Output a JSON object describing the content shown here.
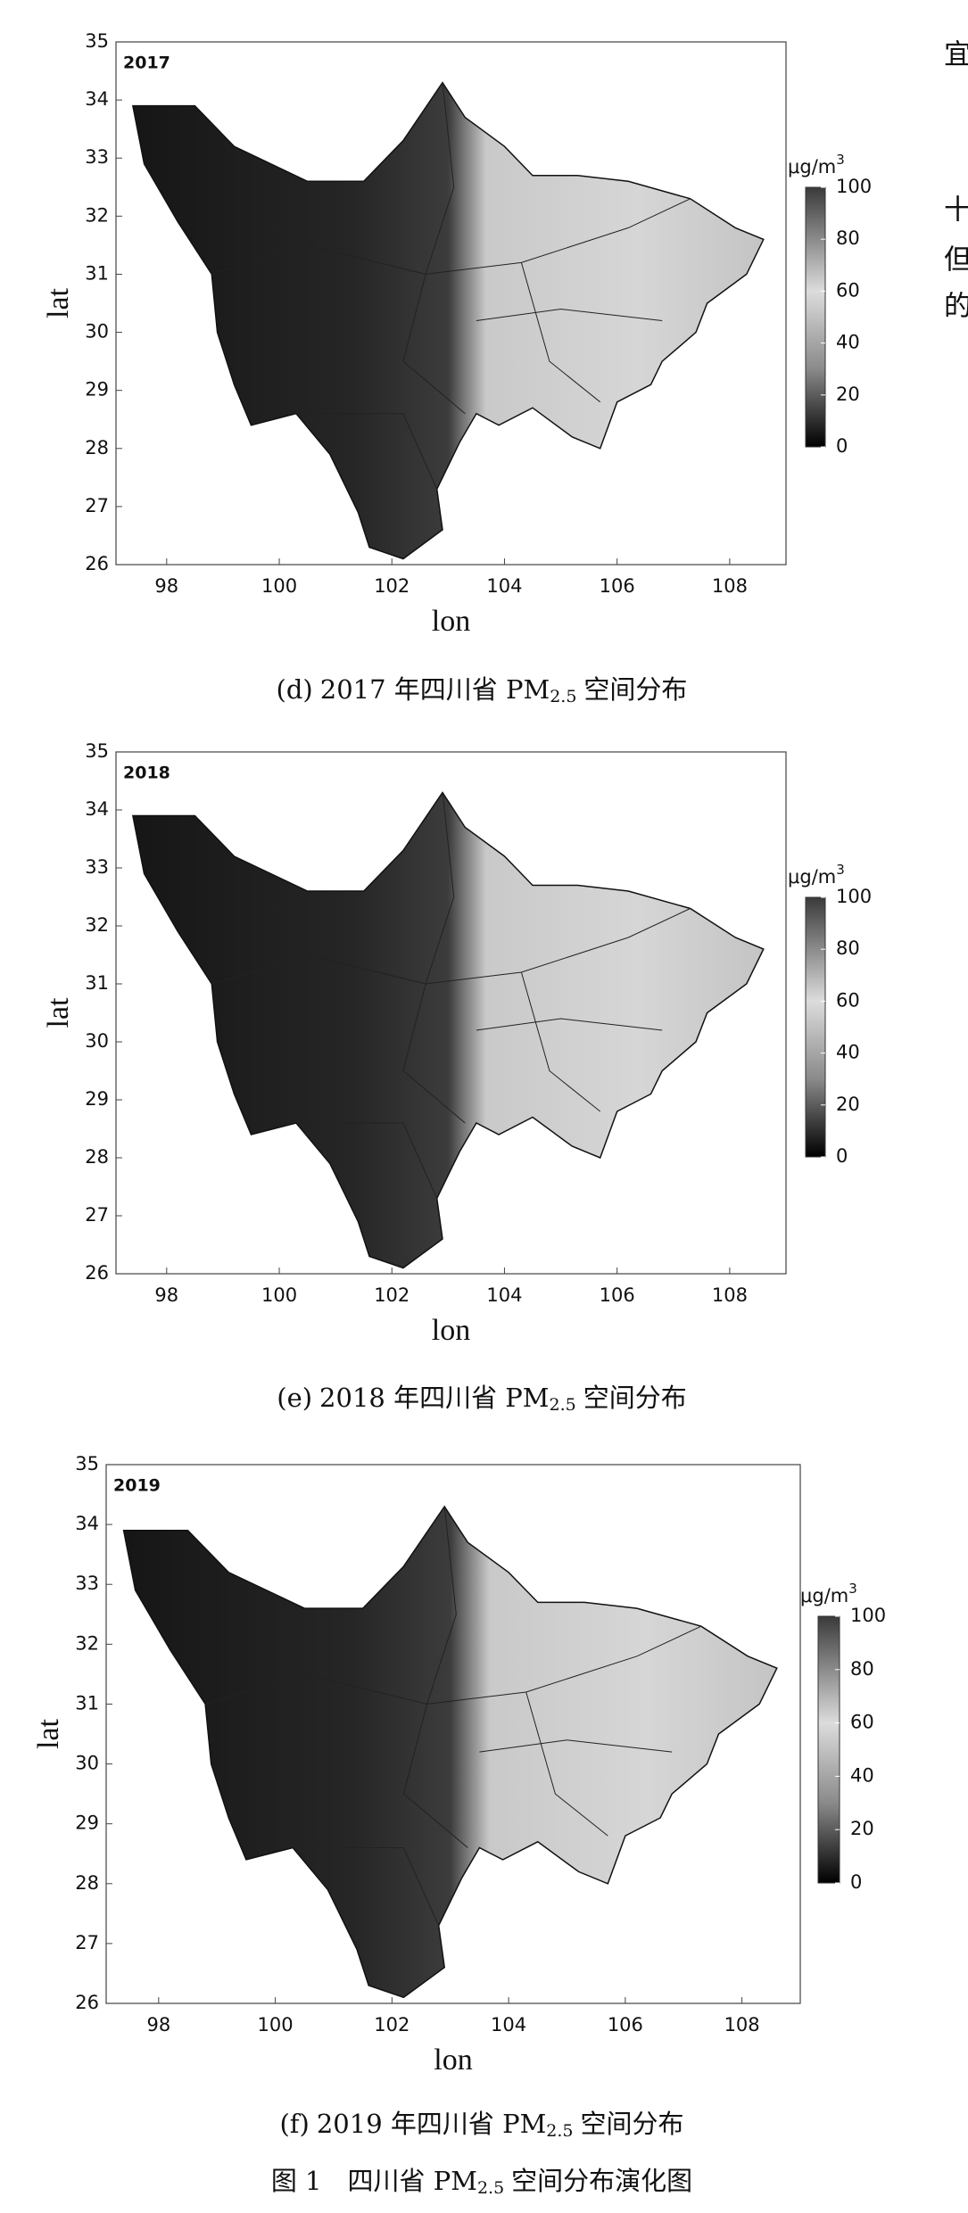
{
  "right_margin_text": [
    "宜",
    "十",
    "但",
    "的"
  ],
  "panels": [
    {
      "year": "2017",
      "xlabel": "lon",
      "ylabel": "lat",
      "xlim": [
        97.1,
        109
      ],
      "xticks": [
        98,
        100,
        102,
        104,
        106,
        108
      ],
      "ylim": [
        26,
        35
      ],
      "yticks": [
        26,
        27,
        28,
        29,
        30,
        31,
        32,
        33,
        34,
        35
      ],
      "colorbar": {
        "unit": "μg/m",
        "unit_sup": "3",
        "lim": [
          0,
          100
        ],
        "ticks": [
          0,
          20,
          40,
          60,
          80,
          100
        ]
      },
      "caption": {
        "label": "(d)",
        "text": "2017 年四川省 PM",
        "sub": "2.5",
        "tail": "空间分布"
      }
    },
    {
      "year": "2018",
      "xlabel": "lon",
      "ylabel": "lat",
      "xlim": [
        97.1,
        109
      ],
      "xticks": [
        98,
        100,
        102,
        104,
        106,
        108
      ],
      "ylim": [
        26,
        35
      ],
      "yticks": [
        26,
        27,
        28,
        29,
        30,
        31,
        32,
        33,
        34,
        35
      ],
      "colorbar": {
        "unit": "μg/m",
        "unit_sup": "3",
        "lim": [
          0,
          100
        ],
        "ticks": [
          0,
          20,
          40,
          60,
          80,
          100
        ]
      },
      "caption": {
        "label": "(e)",
        "text": "2018 年四川省 PM",
        "sub": "2.5",
        "tail": "空间分布"
      }
    },
    {
      "year": "2019",
      "xlabel": "lon",
      "ylabel": "lat",
      "xlim": [
        97.1,
        109
      ],
      "xticks": [
        98,
        100,
        102,
        104,
        106,
        108
      ],
      "ylim": [
        26,
        35
      ],
      "yticks": [
        26,
        27,
        28,
        29,
        30,
        31,
        32,
        33,
        34,
        35
      ],
      "colorbar": {
        "unit": "μg/m",
        "unit_sup": "3",
        "lim": [
          0,
          100
        ],
        "ticks": [
          0,
          20,
          40,
          60,
          80,
          100
        ]
      },
      "caption": {
        "label": "(f)",
        "text": "2019 年四川省 PM",
        "sub": "2.5",
        "tail": "空间分布"
      }
    }
  ],
  "figure_caption": {
    "text": "图 1　四川省 PM",
    "sub": "2.5",
    "tail": "空间分布演化图"
  }
}
